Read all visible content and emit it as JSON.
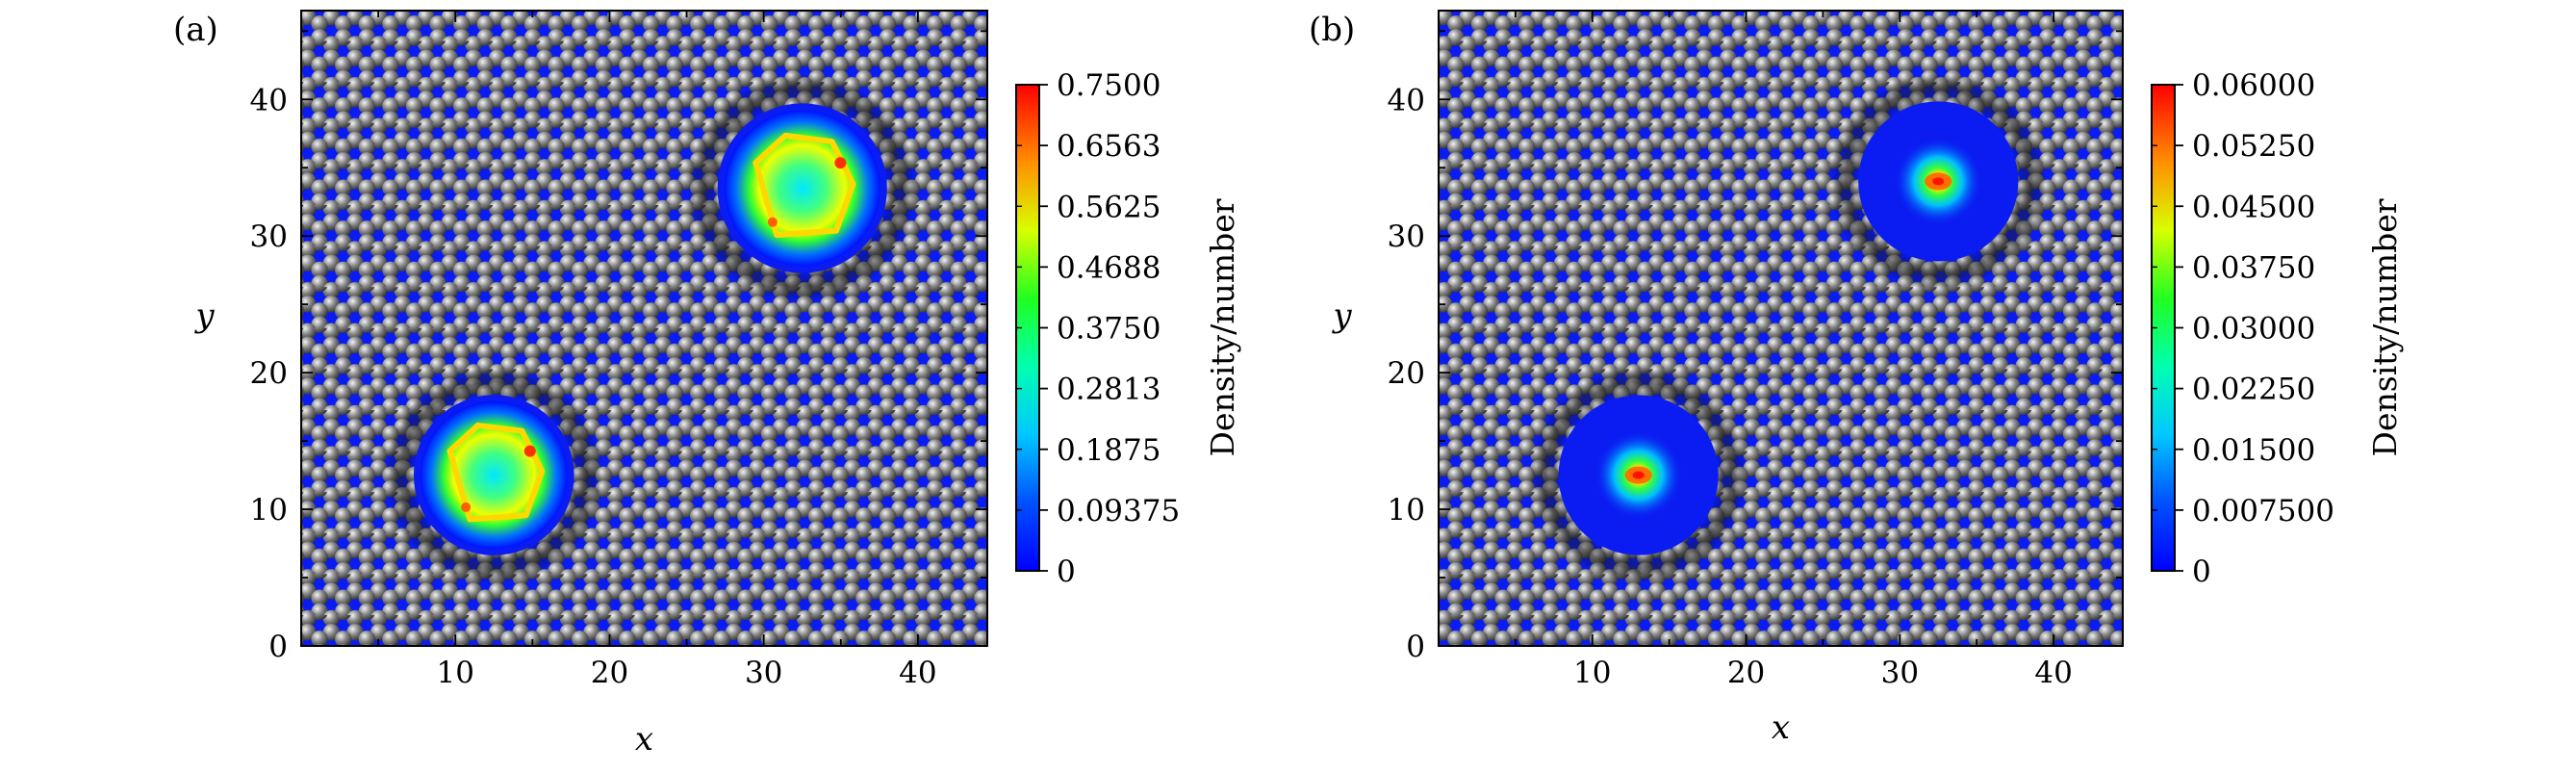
{
  "chart_data": [
    {
      "type": "heatmap",
      "panel_label": "(a)",
      "xlabel": "x",
      "ylabel": "y",
      "xlim": [
        0,
        44.5
      ],
      "ylim": [
        0,
        46.5
      ],
      "xticks": [
        10,
        20,
        30,
        40
      ],
      "yticks": [
        0,
        10,
        20,
        30,
        40
      ],
      "background": "atomic lattice (graphene-like carbon atoms) with density map",
      "regions": [
        {
          "center": [
            32.5,
            33.5
          ],
          "radius": 5.5,
          "peak": 0.75
        },
        {
          "center": [
            12.5,
            12.5
          ],
          "radius": 5.2,
          "peak": 0.75
        }
      ],
      "colorbar": {
        "label": "Density/number",
        "min": 0,
        "max": 0.75,
        "ticks": [
          "0.7500",
          "0.6563",
          "0.5625",
          "0.4688",
          "0.3750",
          "0.2813",
          "0.1875",
          "0.09375",
          "0"
        ]
      }
    },
    {
      "type": "heatmap",
      "panel_label": "(b)",
      "xlabel": "x",
      "ylabel": "y",
      "xlim": [
        0,
        44.5
      ],
      "ylim": [
        0,
        46.5
      ],
      "xticks": [
        10,
        20,
        30,
        40
      ],
      "yticks": [
        0,
        10,
        20,
        30,
        40
      ],
      "background": "atomic lattice (graphene-like carbon atoms) with density map",
      "regions": [
        {
          "center": [
            32.5,
            34.0
          ],
          "radius": 5.2,
          "peak": 0.06
        },
        {
          "center": [
            13.0,
            12.5
          ],
          "radius": 5.2,
          "peak": 0.06
        }
      ],
      "colorbar": {
        "label": "Density/number",
        "min": 0,
        "max": 0.06,
        "ticks": [
          "0.06000",
          "0.05250",
          "0.04500",
          "0.03750",
          "0.03000",
          "0.02250",
          "0.01500",
          "0.007500",
          "0"
        ]
      }
    }
  ],
  "colors": {
    "background": "#0a1cf2",
    "atom": "#6e6e6e",
    "atom_highlight": "#e0e0e0",
    "colormap": [
      "#0000ff",
      "#00a0ff",
      "#00ffe0",
      "#00ff40",
      "#c0ff00",
      "#ffff00",
      "#ff8000",
      "#ff0000"
    ]
  }
}
